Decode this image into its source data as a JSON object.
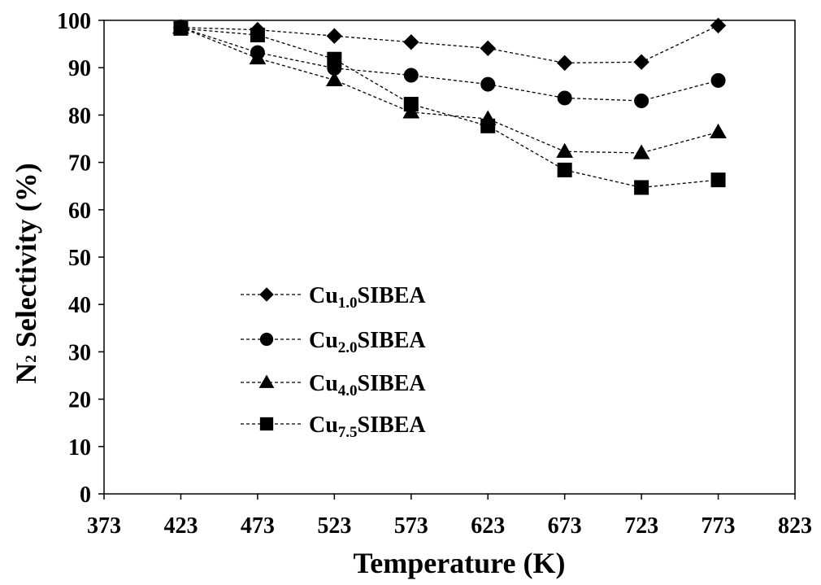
{
  "chart_data": {
    "type": "line",
    "x": [
      423,
      473,
      523,
      573,
      623,
      673,
      723,
      773
    ],
    "xlim": [
      373,
      823
    ],
    "xticks": [
      373,
      423,
      473,
      523,
      573,
      623,
      673,
      723,
      773,
      823
    ],
    "ylim": [
      0,
      100
    ],
    "yticks": [
      0,
      10,
      20,
      30,
      40,
      50,
      60,
      70,
      80,
      90,
      100
    ],
    "xlabel": "Temperature (K)",
    "ylabel": {
      "main": "N",
      "subscript": "2",
      "rest": " Selectivity (%)"
    },
    "grid": false,
    "legend_position": "center-left",
    "series": [
      {
        "name": "Cu1.0SIBEA",
        "label_main": "Cu",
        "label_sub": "1.0",
        "label_rest": "SIBEA",
        "marker": "diamond",
        "values": [
          98.5,
          98.0,
          96.7,
          95.4,
          94.1,
          91.0,
          91.2,
          98.9
        ]
      },
      {
        "name": "Cu2.0SIBEA",
        "label_main": "Cu",
        "label_sub": "2.0",
        "label_rest": "SIBEA",
        "marker": "circle",
        "values": [
          98.5,
          93.2,
          89.9,
          88.4,
          86.5,
          83.6,
          83.0,
          87.3
        ]
      },
      {
        "name": "Cu4.0SIBEA",
        "label_main": "Cu",
        "label_sub": "4.0",
        "label_rest": "SIBEA",
        "marker": "triangle",
        "values": [
          98.5,
          92.0,
          87.4,
          80.6,
          79.2,
          72.3,
          72.0,
          76.4
        ]
      },
      {
        "name": "Cu7.5SIBEA",
        "label_main": "Cu",
        "label_sub": "7.5",
        "label_rest": "SIBEA",
        "marker": "square",
        "values": [
          98.3,
          96.9,
          91.8,
          82.3,
          77.7,
          68.4,
          64.7,
          66.3
        ]
      }
    ],
    "line_style": "dashed",
    "color": "#000000"
  }
}
